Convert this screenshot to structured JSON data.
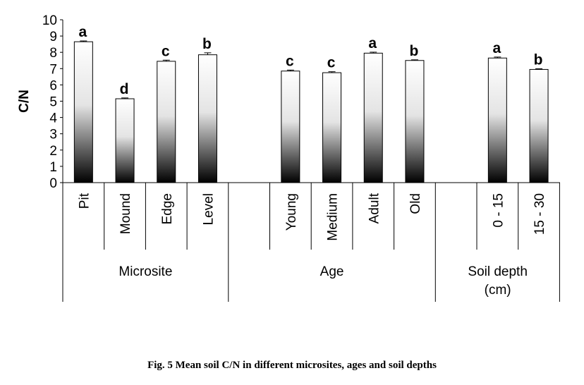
{
  "caption": "Fig. 5 Mean soil C/N in different microsites, ages and soil depths",
  "chart_data": {
    "type": "bar",
    "ylabel": "C/N",
    "ylim": [
      0,
      10
    ],
    "yticks": [
      0,
      1,
      2,
      3,
      4,
      5,
      6,
      7,
      8,
      9,
      10
    ],
    "grid": false,
    "groups": [
      {
        "name": "Microsite",
        "categories": [
          "Pit",
          "Mound",
          "Edge",
          "Level"
        ],
        "values": [
          8.65,
          5.15,
          7.45,
          7.85
        ],
        "errors": [
          0.05,
          0.05,
          0.07,
          0.12
        ],
        "letters": [
          "a",
          "d",
          "c",
          "b"
        ]
      },
      {
        "name": "Age",
        "categories": [
          "Young",
          "Medium",
          "Adult",
          "Old"
        ],
        "values": [
          6.85,
          6.75,
          7.95,
          7.5
        ],
        "errors": [
          0.06,
          0.06,
          0.06,
          0.04
        ],
        "letters": [
          "c",
          "c",
          "a",
          "b"
        ]
      },
      {
        "name": "Soil depth\n(cm)",
        "categories": [
          "0 - 15",
          "15 - 30"
        ],
        "values": [
          7.65,
          6.95
        ],
        "errors": [
          0.06,
          0.04
        ],
        "letters": [
          "a",
          "b"
        ]
      }
    ]
  }
}
